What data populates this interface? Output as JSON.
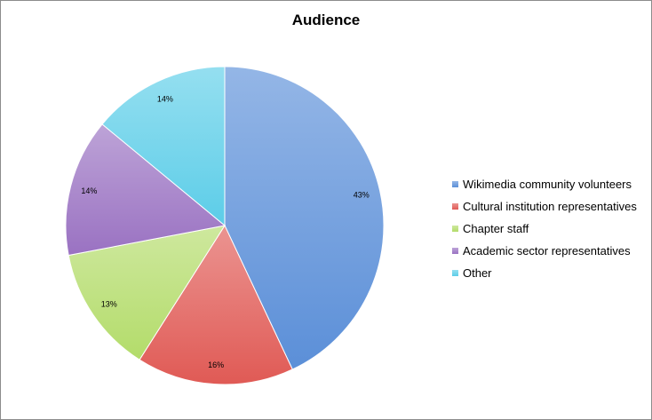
{
  "chart_data": {
    "type": "pie",
    "title": "Audience",
    "legend_position": "right",
    "slices": [
      {
        "name": "Wikimedia community volunteers",
        "value": 43,
        "label": "43%",
        "color": "#5b8fd8"
      },
      {
        "name": "Cultural institution representatives",
        "value": 16,
        "label": "16%",
        "color": "#e05a55"
      },
      {
        "name": "Chapter staff",
        "value": 13,
        "label": "13%",
        "color": "#b3dc6a"
      },
      {
        "name": "Academic sector representatives",
        "value": 14,
        "label": "14%",
        "color": "#9a72c2"
      },
      {
        "name": "Other",
        "value": 14,
        "label": "14%",
        "color": "#5ccde8"
      }
    ]
  }
}
